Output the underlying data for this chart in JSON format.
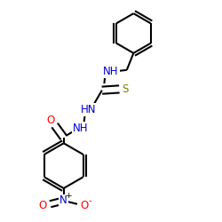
{
  "bg_color": "#ffffff",
  "bond_color": "#000000",
  "N_color": "#0000cc",
  "O_color": "#ff0000",
  "S_color": "#808000",
  "lw": 1.5,
  "dbo": 0.018,
  "fs": 8.5,
  "figsize": [
    2.5,
    2.5
  ],
  "dpi": 100,
  "xlim": [
    0.05,
    0.95
  ],
  "ylim": [
    0.02,
    1.0
  ]
}
